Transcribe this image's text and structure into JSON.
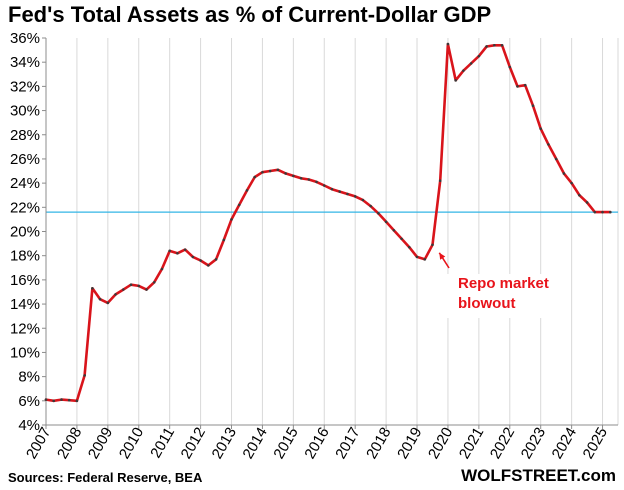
{
  "title": "Fed's Total Assets as % of Current-Dollar GDP",
  "source": "Sources: Federal Reserve, BEA",
  "brand": "WOLFSTREET.com",
  "annotation": {
    "line1": "Repo market",
    "line2": "blowout",
    "x": 2019.85,
    "y": 18.9
  },
  "colors": {
    "series": "#d9141b",
    "marker": "#3a3a3a",
    "reference": "#33b5e5",
    "grid": "#d9d9d9",
    "annotation": "#e8141b"
  },
  "chart_data": {
    "type": "line",
    "title": "Fed's Total Assets as % of Current-Dollar GDP",
    "xlabel": "",
    "ylabel": "",
    "xlim": [
      2007.0,
      2025.5
    ],
    "ylim": [
      4,
      36
    ],
    "y_ticks": [
      4,
      6,
      8,
      10,
      12,
      14,
      16,
      18,
      20,
      22,
      24,
      26,
      28,
      30,
      32,
      34,
      36
    ],
    "y_tick_labels": [
      "4%",
      "6%",
      "8%",
      "10%",
      "12%",
      "14%",
      "16%",
      "18%",
      "20%",
      "22%",
      "24%",
      "26%",
      "28%",
      "30%",
      "32%",
      "34%",
      "36%"
    ],
    "x_ticks": [
      2007,
      2008,
      2009,
      2010,
      2011,
      2012,
      2013,
      2014,
      2015,
      2016,
      2017,
      2018,
      2019,
      2020,
      2021,
      2022,
      2023,
      2024,
      2025
    ],
    "x_tick_labels": [
      "2007",
      "2008",
      "2009",
      "2010",
      "2011",
      "2012",
      "2013",
      "2014",
      "2015",
      "2016",
      "2017",
      "2018",
      "2019",
      "2020",
      "2021",
      "2022",
      "2023",
      "2024",
      "2025"
    ],
    "grid": "vertical",
    "reference_line": 21.6,
    "series": [
      {
        "x": [
          2007.0,
          2007.25,
          2007.5,
          2007.75,
          2008.0,
          2008.25,
          2008.5,
          2008.75,
          2009.0,
          2009.25,
          2009.5,
          2009.75,
          2010.0,
          2010.25,
          2010.5,
          2010.75,
          2011.0,
          2011.25,
          2011.5,
          2011.75,
          2012.0,
          2012.25,
          2012.5,
          2012.75,
          2013.0,
          2013.25,
          2013.5,
          2013.75,
          2014.0,
          2014.25,
          2014.5,
          2014.75,
          2015.0,
          2015.25,
          2015.5,
          2015.75,
          2016.0,
          2016.25,
          2016.5,
          2016.75,
          2017.0,
          2017.25,
          2017.5,
          2017.75,
          2018.0,
          2018.25,
          2018.5,
          2018.75,
          2019.0,
          2019.25,
          2019.5,
          2019.75,
          2020.0,
          2020.25,
          2020.5,
          2020.75,
          2021.0,
          2021.25,
          2021.5,
          2021.75,
          2022.0,
          2022.25,
          2022.5,
          2022.75,
          2023.0,
          2023.25,
          2023.5,
          2023.75,
          2024.0,
          2024.25,
          2024.5,
          2024.75,
          2025.0,
          2025.25
        ],
        "values": [
          6.1,
          6.0,
          6.1,
          6.05,
          6.0,
          8.1,
          15.3,
          14.4,
          14.1,
          14.8,
          15.2,
          15.6,
          15.5,
          15.2,
          15.8,
          16.9,
          18.4,
          18.2,
          18.5,
          17.9,
          17.6,
          17.2,
          17.7,
          19.3,
          21.0,
          22.2,
          23.4,
          24.5,
          24.9,
          25.0,
          25.1,
          24.8,
          24.6,
          24.4,
          24.3,
          24.1,
          23.8,
          23.5,
          23.3,
          23.1,
          22.9,
          22.6,
          22.1,
          21.5,
          20.8,
          20.1,
          19.4,
          18.7,
          17.9,
          17.7,
          18.9,
          24.2,
          35.5,
          32.5,
          33.3,
          33.9,
          34.5,
          35.3,
          35.4,
          35.4,
          33.6,
          32.0,
          32.1,
          30.4,
          28.5,
          27.2,
          26.0,
          24.8,
          24.0,
          23.0,
          22.4,
          21.6,
          21.6,
          21.6
        ]
      }
    ]
  }
}
